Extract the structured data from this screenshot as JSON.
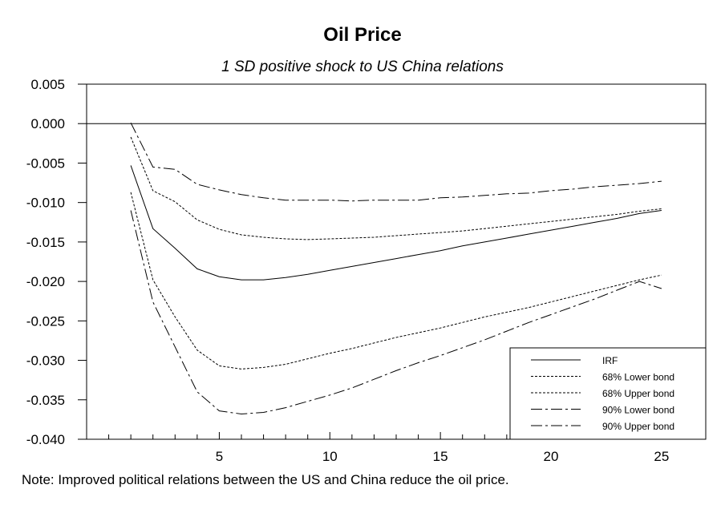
{
  "chart_data": {
    "type": "line",
    "title": "Oil Price",
    "subtitle": "1 SD positive shock to US China relations",
    "xlabel": "",
    "ylabel": "",
    "xlim": [
      -1,
      27
    ],
    "ylim": [
      -0.04,
      0.005
    ],
    "x_ticks": [
      5,
      10,
      15,
      20,
      25
    ],
    "x_tick_labels": [
      "5",
      "10",
      "15",
      "20",
      "25"
    ],
    "y_ticks": [
      0.005,
      0.0,
      -0.005,
      -0.01,
      -0.015,
      -0.02,
      -0.025,
      -0.03,
      -0.035,
      -0.04
    ],
    "y_tick_labels": [
      "0.005",
      "0.000",
      "-0.005",
      "-0.010",
      "-0.015",
      "-0.020",
      "-0.025",
      "-0.030",
      "-0.035",
      "-0.040"
    ],
    "grid": false,
    "zero_line": true,
    "legend_position": "bottom-right",
    "x": [
      1,
      2,
      3,
      4,
      5,
      6,
      7,
      8,
      9,
      10,
      11,
      12,
      13,
      14,
      15,
      16,
      17,
      18,
      19,
      20,
      21,
      22,
      23,
      24,
      25
    ],
    "series": [
      {
        "name": "IRF",
        "dash": "solid",
        "values": [
          -0.0053,
          -0.0133,
          -0.0158,
          -0.0184,
          -0.0194,
          -0.0198,
          -0.0198,
          -0.0195,
          -0.0191,
          -0.0186,
          -0.0181,
          -0.0176,
          -0.0171,
          -0.0166,
          -0.0161,
          -0.0155,
          -0.015,
          -0.0145,
          -0.014,
          -0.0135,
          -0.013,
          -0.0125,
          -0.012,
          -0.0114,
          -0.011
        ]
      },
      {
        "name": "68% Lower bond",
        "dash": "dotted",
        "values": [
          -0.0087,
          -0.0198,
          -0.0245,
          -0.0287,
          -0.0307,
          -0.0311,
          -0.0309,
          -0.0305,
          -0.0298,
          -0.0291,
          -0.0285,
          -0.0278,
          -0.0271,
          -0.0265,
          -0.0259,
          -0.0252,
          -0.0245,
          -0.0239,
          -0.0233,
          -0.0226,
          -0.0219,
          -0.0212,
          -0.0205,
          -0.0198,
          -0.0192
        ]
      },
      {
        "name": "68% Upper bond",
        "dash": "dotted",
        "values": [
          -0.0017,
          -0.0085,
          -0.0099,
          -0.0122,
          -0.0134,
          -0.0141,
          -0.0144,
          -0.0146,
          -0.0147,
          -0.0146,
          -0.0145,
          -0.0144,
          -0.0142,
          -0.014,
          -0.0138,
          -0.0136,
          -0.0133,
          -0.013,
          -0.0127,
          -0.0124,
          -0.0121,
          -0.0118,
          -0.0115,
          -0.0111,
          -0.0108
        ]
      },
      {
        "name": "90% Lower bond",
        "dash": "dashdot",
        "values": [
          -0.011,
          -0.0226,
          -0.0283,
          -0.034,
          -0.0364,
          -0.0368,
          -0.0366,
          -0.036,
          -0.0352,
          -0.0344,
          -0.0335,
          -0.0324,
          -0.0313,
          -0.0303,
          -0.0294,
          -0.0284,
          -0.0274,
          -0.0263,
          -0.0252,
          -0.0242,
          -0.0232,
          -0.0222,
          -0.0211,
          -0.02,
          -0.0209
        ]
      },
      {
        "name": "90% Upper bond",
        "dash": "dashdot",
        "values": [
          0.0001,
          -0.0055,
          -0.0058,
          -0.0077,
          -0.0084,
          -0.009,
          -0.0094,
          -0.0097,
          -0.0097,
          -0.0097,
          -0.0098,
          -0.0097,
          -0.0097,
          -0.0097,
          -0.0094,
          -0.0093,
          -0.0091,
          -0.0089,
          -0.0088,
          -0.0085,
          -0.0083,
          -0.008,
          -0.0078,
          -0.0076,
          -0.0073
        ]
      }
    ]
  },
  "note": "Note: Improved political relations between the US and China reduce the oil price."
}
